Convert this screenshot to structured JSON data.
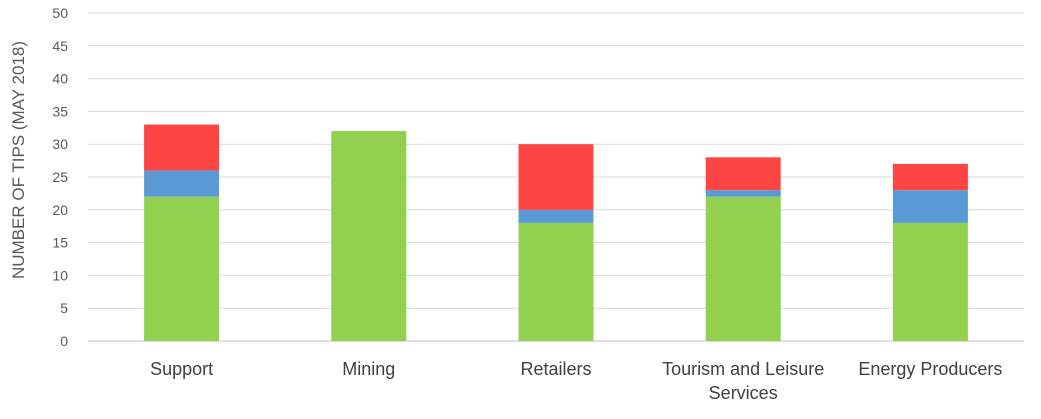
{
  "chart_data": {
    "type": "bar",
    "stacked": true,
    "categories": [
      [
        "Support"
      ],
      [
        "Mining"
      ],
      [
        "Retailers"
      ],
      [
        "Tourism and Leisure",
        "Services"
      ],
      [
        "Energy Producers"
      ]
    ],
    "series": [
      {
        "color": "#92d050",
        "values": [
          22,
          32,
          18,
          22,
          18
        ]
      },
      {
        "color": "#5b9bd5",
        "values": [
          4,
          0,
          2,
          1,
          5
        ]
      },
      {
        "color": "#ff4444",
        "values": [
          7,
          0,
          10,
          5,
          4
        ]
      }
    ],
    "ylabel": "NUMBER OF TIPS (MAY 2018)",
    "ylim": [
      0,
      50
    ],
    "yticks": [
      0,
      5,
      10,
      15,
      20,
      25,
      30,
      35,
      40,
      45,
      50
    ],
    "grid": true,
    "legend": "none"
  }
}
